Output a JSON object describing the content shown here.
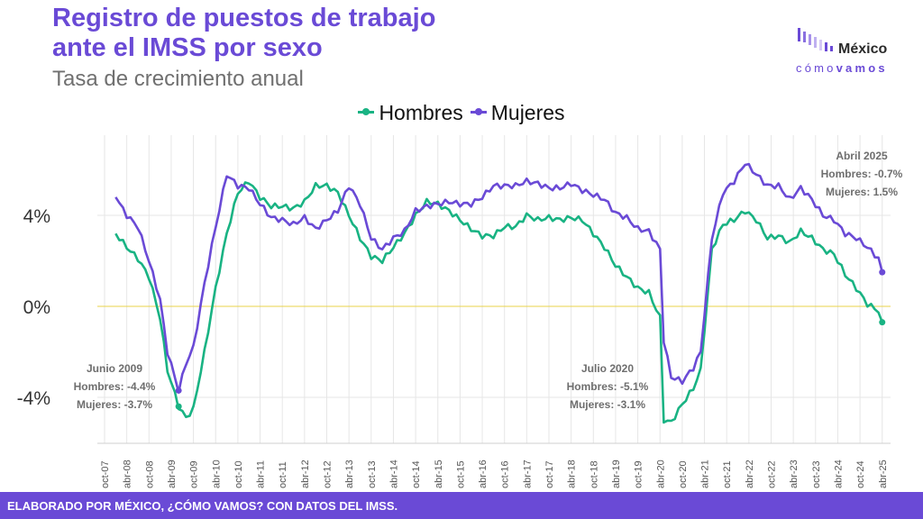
{
  "header": {
    "title_line1": "Registro de puestos de trabajo",
    "title_line2": "ante el IMSS por sexo",
    "subtitle": "Tasa de crecimiento anual"
  },
  "logo": {
    "name": "México",
    "sub_light": "cómo",
    "sub_bold": "vamos",
    "icon": "bar-chart-logo-icon"
  },
  "footer": {
    "text": "ELABORADO POR MÉXICO, ¿CÓMO VAMOS? CON DATOS DEL IMSS."
  },
  "colors": {
    "hombres": "#19b383",
    "mujeres": "#6a4ad6",
    "zero_line": "#e8d34a",
    "grid": "#e6e6e6",
    "accent": "#6a4ad6"
  },
  "annotations": [
    {
      "lines": [
        "Junio 2009",
        "Hombres: -4.4%",
        "Mujeres: -3.7%"
      ]
    },
    {
      "lines": [
        "Julio 2020",
        "Hombres: -5.1%",
        "Mujeres: -3.1%"
      ]
    },
    {
      "lines": [
        "Abril 2025",
        "Hombres: -0.7%",
        "Mujeres: 1.5%"
      ]
    }
  ],
  "chart_data": {
    "type": "line",
    "title": "Registro de puestos de trabajo ante el IMSS por sexo",
    "subtitle": "Tasa de crecimiento anual",
    "xlabel": "",
    "ylabel": "",
    "ylim": [
      -6.2,
      7.8
    ],
    "yticks": [
      -4,
      0,
      4
    ],
    "ytick_labels": [
      "-4%",
      "0%",
      "4%"
    ],
    "grid": true,
    "legend_position": "top-center",
    "x_start": "2008-01",
    "x_end": "2025-04",
    "xtick_labels": [
      "oct-07",
      "abr-08",
      "oct-08",
      "abr-09",
      "oct-09",
      "abr-10",
      "oct-10",
      "abr-11",
      "oct-11",
      "abr-12",
      "oct-12",
      "abr-13",
      "oct-13",
      "abr-14",
      "oct-14",
      "abr-15",
      "oct-15",
      "abr-16",
      "oct-16",
      "abr-17",
      "oct-17",
      "abr-18",
      "oct-18",
      "abr-19",
      "oct-19",
      "abr-20",
      "oct-20",
      "abr-21",
      "oct-21",
      "abr-22",
      "oct-22",
      "abr-23",
      "oct-23",
      "abr-24",
      "oct-24",
      "abr-25"
    ],
    "series": [
      {
        "name": "Hombres",
        "points": [
          [
            "2008-01",
            3.2
          ],
          [
            "2008-04",
            2.6
          ],
          [
            "2008-07",
            2.1
          ],
          [
            "2008-10",
            1.3
          ],
          [
            "2009-01",
            -0.5
          ],
          [
            "2009-03",
            -2.8
          ],
          [
            "2009-06",
            -4.4
          ],
          [
            "2009-08",
            -4.9
          ],
          [
            "2009-10",
            -4.5
          ],
          [
            "2010-01",
            -2.0
          ],
          [
            "2010-04",
            0.8
          ],
          [
            "2010-07",
            3.2
          ],
          [
            "2010-10",
            5.0
          ],
          [
            "2011-01",
            5.5
          ],
          [
            "2011-04",
            4.8
          ],
          [
            "2011-07",
            4.4
          ],
          [
            "2011-10",
            4.4
          ],
          [
            "2012-01",
            4.3
          ],
          [
            "2012-04",
            4.6
          ],
          [
            "2012-07",
            5.3
          ],
          [
            "2012-10",
            5.3
          ],
          [
            "2013-01",
            5.0
          ],
          [
            "2013-04",
            4.0
          ],
          [
            "2013-07",
            3.0
          ],
          [
            "2013-10",
            2.2
          ],
          [
            "2014-01",
            2.0
          ],
          [
            "2014-04",
            2.6
          ],
          [
            "2014-07",
            3.2
          ],
          [
            "2014-10",
            4.0
          ],
          [
            "2015-01",
            4.6
          ],
          [
            "2015-04",
            4.5
          ],
          [
            "2015-07",
            4.2
          ],
          [
            "2015-10",
            3.8
          ],
          [
            "2016-01",
            3.4
          ],
          [
            "2016-04",
            3.1
          ],
          [
            "2016-07",
            3.1
          ],
          [
            "2016-10",
            3.5
          ],
          [
            "2017-01",
            3.5
          ],
          [
            "2017-04",
            4.0
          ],
          [
            "2017-07",
            3.8
          ],
          [
            "2017-10",
            3.9
          ],
          [
            "2018-01",
            3.8
          ],
          [
            "2018-04",
            3.9
          ],
          [
            "2018-07",
            3.8
          ],
          [
            "2018-10",
            3.2
          ],
          [
            "2019-01",
            2.6
          ],
          [
            "2019-04",
            1.8
          ],
          [
            "2019-07",
            1.3
          ],
          [
            "2019-10",
            0.8
          ],
          [
            "2020-01",
            0.6
          ],
          [
            "2020-04",
            -0.5
          ],
          [
            "2020-05",
            -5.0
          ],
          [
            "2020-07",
            -5.1
          ],
          [
            "2020-10",
            -4.3
          ],
          [
            "2021-01",
            -3.6
          ],
          [
            "2021-03",
            -2.8
          ],
          [
            "2021-06",
            2.5
          ],
          [
            "2021-09",
            3.6
          ],
          [
            "2021-12",
            3.8
          ],
          [
            "2022-03",
            4.2
          ],
          [
            "2022-06",
            3.8
          ],
          [
            "2022-09",
            3.0
          ],
          [
            "2022-12",
            3.1
          ],
          [
            "2023-03",
            2.8
          ],
          [
            "2023-06",
            3.3
          ],
          [
            "2023-09",
            3.0
          ],
          [
            "2023-12",
            2.5
          ],
          [
            "2024-03",
            2.3
          ],
          [
            "2024-06",
            1.4
          ],
          [
            "2024-09",
            0.8
          ],
          [
            "2024-12",
            0.1
          ],
          [
            "2025-03",
            -0.2
          ],
          [
            "2025-04",
            -0.7
          ]
        ]
      },
      {
        "name": "Mujeres",
        "points": [
          [
            "2008-01",
            4.8
          ],
          [
            "2008-04",
            4.0
          ],
          [
            "2008-07",
            3.5
          ],
          [
            "2008-10",
            2.0
          ],
          [
            "2009-01",
            0.3
          ],
          [
            "2009-03",
            -2.0
          ],
          [
            "2009-06",
            -3.7
          ],
          [
            "2009-08",
            -2.5
          ],
          [
            "2009-10",
            -1.8
          ],
          [
            "2010-01",
            1.0
          ],
          [
            "2010-04",
            3.5
          ],
          [
            "2010-07",
            5.8
          ],
          [
            "2010-10",
            5.3
          ],
          [
            "2011-01",
            5.2
          ],
          [
            "2011-04",
            4.5
          ],
          [
            "2011-07",
            3.9
          ],
          [
            "2011-10",
            3.8
          ],
          [
            "2012-01",
            3.6
          ],
          [
            "2012-04",
            3.9
          ],
          [
            "2012-07",
            3.4
          ],
          [
            "2012-10",
            3.8
          ],
          [
            "2013-01",
            4.2
          ],
          [
            "2013-04",
            5.3
          ],
          [
            "2013-07",
            4.5
          ],
          [
            "2013-10",
            3.0
          ],
          [
            "2014-01",
            2.5
          ],
          [
            "2014-04",
            3.0
          ],
          [
            "2014-07",
            3.3
          ],
          [
            "2014-10",
            4.2
          ],
          [
            "2015-01",
            4.4
          ],
          [
            "2015-04",
            4.5
          ],
          [
            "2015-07",
            4.6
          ],
          [
            "2015-10",
            4.5
          ],
          [
            "2016-01",
            4.5
          ],
          [
            "2016-04",
            4.8
          ],
          [
            "2016-07",
            5.3
          ],
          [
            "2016-10",
            5.3
          ],
          [
            "2017-01",
            5.3
          ],
          [
            "2017-04",
            5.5
          ],
          [
            "2017-07",
            5.4
          ],
          [
            "2017-10",
            5.2
          ],
          [
            "2018-01",
            5.2
          ],
          [
            "2018-04",
            5.4
          ],
          [
            "2018-07",
            5.1
          ],
          [
            "2018-10",
            4.9
          ],
          [
            "2019-01",
            4.7
          ],
          [
            "2019-04",
            4.1
          ],
          [
            "2019-07",
            3.9
          ],
          [
            "2019-10",
            3.4
          ],
          [
            "2020-01",
            3.3
          ],
          [
            "2020-04",
            2.5
          ],
          [
            "2020-05",
            -1.5
          ],
          [
            "2020-07",
            -3.1
          ],
          [
            "2020-10",
            -3.3
          ],
          [
            "2021-01",
            -2.7
          ],
          [
            "2021-03",
            -2.0
          ],
          [
            "2021-06",
            3.0
          ],
          [
            "2021-09",
            5.0
          ],
          [
            "2021-12",
            5.5
          ],
          [
            "2022-03",
            6.3
          ],
          [
            "2022-06",
            5.8
          ],
          [
            "2022-09",
            5.3
          ],
          [
            "2022-12",
            5.3
          ],
          [
            "2023-03",
            4.7
          ],
          [
            "2023-06",
            5.2
          ],
          [
            "2023-09",
            4.7
          ],
          [
            "2023-12",
            4.0
          ],
          [
            "2024-03",
            3.8
          ],
          [
            "2024-06",
            3.2
          ],
          [
            "2024-09",
            3.0
          ],
          [
            "2024-12",
            2.6
          ],
          [
            "2025-03",
            2.1
          ],
          [
            "2025-04",
            1.5
          ]
        ]
      }
    ]
  }
}
